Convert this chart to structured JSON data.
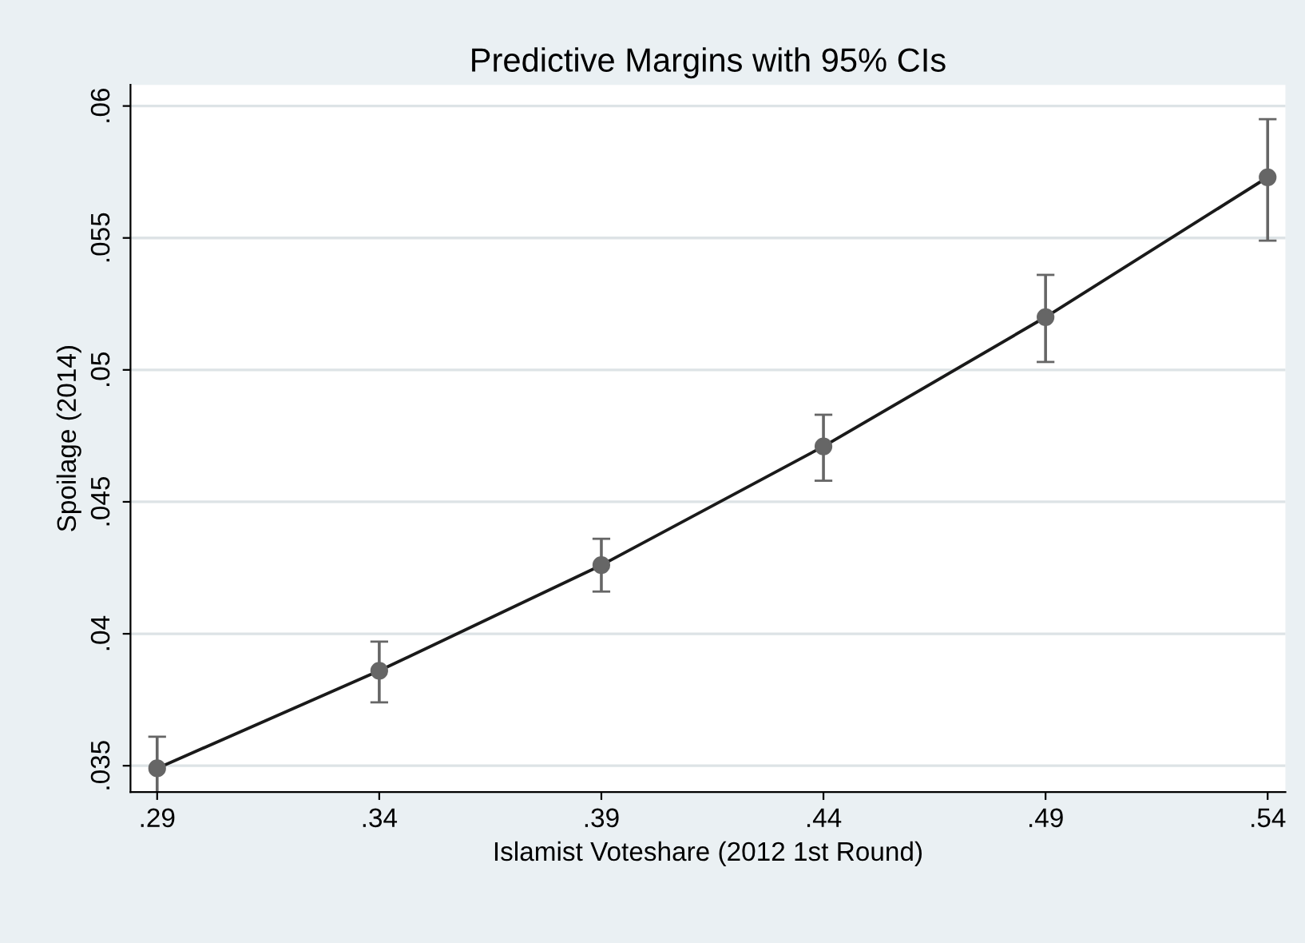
{
  "chart_data": {
    "type": "line",
    "title": "Predictive Margins with 95% CIs",
    "xlabel": "Islamist Voteshare (2012 1st Round)",
    "ylabel": "Spoilage (2014)",
    "x": [
      0.29,
      0.34,
      0.39,
      0.44,
      0.49,
      0.54
    ],
    "series": [
      {
        "color": "#1a1a1a",
        "values": [
          0.0349,
          0.0386,
          0.0426,
          0.0471,
          0.052,
          0.0573
        ],
        "errors": [
          [
            0.0336,
            0.0361
          ],
          [
            0.0374,
            0.0397
          ],
          [
            0.0416,
            0.0436
          ],
          [
            0.0458,
            0.0483
          ],
          [
            0.0503,
            0.0536
          ],
          [
            0.0549,
            0.0595
          ]
        ]
      }
    ],
    "marker": "circle",
    "line_style": "solid",
    "grid": "y",
    "xlim": [
      0.284,
      0.544
    ],
    "ylim": [
      0.034,
      0.0608
    ],
    "xticks": [
      {
        "value": 0.29,
        "label": ".29"
      },
      {
        "value": 0.34,
        "label": ".34"
      },
      {
        "value": 0.39,
        "label": ".39"
      },
      {
        "value": 0.44,
        "label": ".44"
      },
      {
        "value": 0.49,
        "label": ".49"
      },
      {
        "value": 0.54,
        "label": ".54"
      }
    ],
    "yticks": [
      {
        "value": 0.035,
        "label": ".035"
      },
      {
        "value": 0.04,
        "label": ".04"
      },
      {
        "value": 0.045,
        "label": ".045"
      },
      {
        "value": 0.05,
        "label": ".05"
      },
      {
        "value": 0.055,
        "label": ".055"
      },
      {
        "value": 0.06,
        "label": ".06"
      }
    ]
  }
}
